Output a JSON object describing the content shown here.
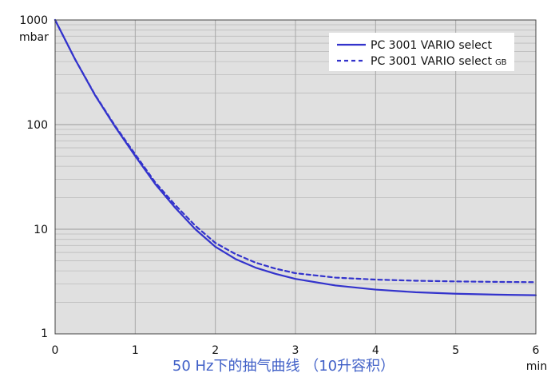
{
  "chart_data": {
    "type": "line",
    "title": "50 Hz下的抽气曲线 （10升容积）",
    "xlabel": "min",
    "ylabel": "mbar",
    "x_ticks": [
      "0",
      "1",
      "2",
      "3",
      "4",
      "5",
      "6"
    ],
    "y_ticks": [
      "1",
      "10",
      "100",
      "1000"
    ],
    "xlim": [
      0,
      6
    ],
    "ylim": [
      1,
      1000
    ],
    "y_scale": "log",
    "grid": true,
    "legend_position": "top-right",
    "line_color": "#3333cc",
    "series": [
      {
        "name": "PC 3001 VARIO select",
        "style": "solid",
        "x": [
          0,
          0.25,
          0.5,
          0.75,
          1.0,
          1.25,
          1.5,
          1.75,
          2.0,
          2.25,
          2.5,
          2.75,
          3.0,
          3.5,
          4.0,
          4.5,
          5.0,
          5.5,
          6.0
        ],
        "y": [
          1000,
          420,
          190,
          95,
          50,
          27,
          16,
          10,
          6.8,
          5.2,
          4.3,
          3.75,
          3.35,
          2.9,
          2.65,
          2.5,
          2.42,
          2.37,
          2.34
        ]
      },
      {
        "name": "PC 3001 VARIO select",
        "name_suffix": "GB",
        "style": "dashed",
        "x": [
          0,
          0.25,
          0.5,
          0.75,
          1.0,
          1.25,
          1.5,
          1.75,
          2.0,
          2.25,
          2.5,
          2.75,
          3.0,
          3.5,
          4.0,
          4.5,
          5.0,
          5.5,
          6.0
        ],
        "y": [
          1000,
          420,
          192,
          97,
          52,
          28,
          17,
          10.8,
          7.4,
          5.8,
          4.8,
          4.2,
          3.8,
          3.45,
          3.3,
          3.22,
          3.17,
          3.14,
          3.12
        ]
      }
    ]
  }
}
